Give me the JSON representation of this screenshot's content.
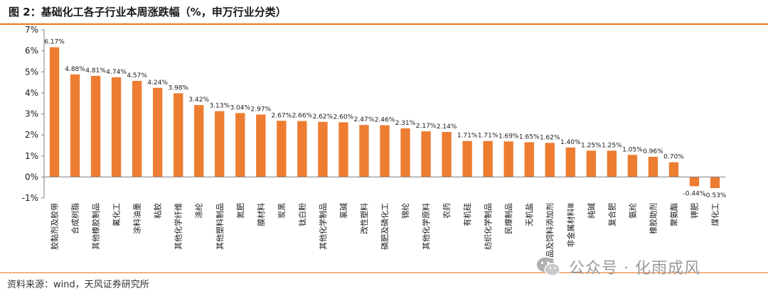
{
  "figure": {
    "title": "图 2：基础化工各子行业本周涨跌幅（%，申万行业分类）",
    "source": "资料来源：wind，天风证券研究所",
    "watermark": "公众号 · 化雨成风",
    "bar_color": "#ED7D31",
    "rule_color": "#E8731F"
  },
  "chart_data": {
    "type": "bar",
    "title": "",
    "xlabel": "",
    "ylabel": "",
    "ylim": [
      -1,
      7
    ],
    "ytick_labels": [
      "-1%",
      "0%",
      "1%",
      "2%",
      "3%",
      "4%",
      "5%",
      "6%",
      "7%"
    ],
    "grid": false,
    "legend": "none",
    "categories": [
      "胶黏剂及胶带",
      "合成树脂",
      "其他橡胶制品",
      "氟化工",
      "涂料油墨",
      "粘胶",
      "其他化学纤维",
      "涤纶",
      "其他塑料制品",
      "氮肥",
      "膜材料",
      "炭黑",
      "钛白粉",
      "其他化学制品",
      "氯碱",
      "改性塑料",
      "磷肥及磷化工",
      "锦纶",
      "其他化学原料",
      "农药",
      "有机硅",
      "纺织化学制品",
      "民爆制品",
      "无机盐",
      "食品及饲料添加剂",
      "非金属材料Ⅲ",
      "纯碱",
      "复合肥",
      "氨纶",
      "橡胶助剂",
      "聚氨酯",
      "钾肥",
      "煤化工"
    ],
    "values": [
      6.17,
      4.88,
      4.81,
      4.74,
      4.57,
      4.24,
      3.98,
      3.42,
      3.13,
      3.04,
      2.97,
      2.67,
      2.66,
      2.62,
      2.6,
      2.47,
      2.46,
      2.31,
      2.17,
      2.14,
      1.71,
      1.71,
      1.69,
      1.65,
      1.62,
      1.4,
      1.25,
      1.25,
      1.05,
      0.96,
      0.7,
      -0.44,
      -0.53
    ],
    "value_labels": [
      "6.17%",
      "4.88%",
      "4.81%",
      "4.74%",
      "4.57%",
      "4.24%",
      "3.98%",
      "3.42%",
      "3.13%",
      "3.04%",
      "2.97%",
      "2.67%",
      "2.66%",
      "2.62%",
      "2.60%",
      "2.47%",
      "2.46%",
      "2.31%",
      "2.17%",
      "2.14%",
      "1.71%",
      "1.71%",
      "1.69%",
      "1.65%",
      "1.62%",
      "1.40%",
      "1.25%",
      "1.25%",
      "1.05%",
      "0.96%",
      "0.70%",
      "-0.44%",
      "-0.53%"
    ]
  }
}
